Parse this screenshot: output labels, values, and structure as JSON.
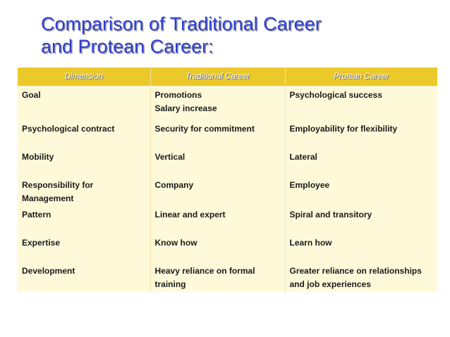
{
  "title": {
    "line1": "Comparison of Traditional Career",
    "line2": "and Protean Career:"
  },
  "table": {
    "headers": [
      "Dimension",
      "Traditional Career",
      "Protean Career"
    ],
    "rows": [
      {
        "dimension": [
          "Goal"
        ],
        "traditional": [
          "Promotions",
          "Salary increase"
        ],
        "protean": [
          "Psychological success"
        ]
      },
      {
        "dimension": [
          "Psychological contract"
        ],
        "traditional": [
          "Security for commitment"
        ],
        "protean": [
          "Employability for flexibility"
        ]
      },
      {
        "dimension": [
          "Mobility"
        ],
        "traditional": [
          "Vertical"
        ],
        "protean": [
          "Lateral"
        ]
      },
      {
        "dimension": [
          "Responsibility for",
          "Management"
        ],
        "traditional": [
          "Company"
        ],
        "protean": [
          "Employee"
        ]
      },
      {
        "dimension": [
          "Pattern"
        ],
        "traditional": [
          "Linear and expert"
        ],
        "protean": [
          "Spiral and transitory"
        ]
      },
      {
        "dimension": [
          "Expertise"
        ],
        "traditional": [
          "Know how"
        ],
        "protean": [
          "Learn how"
        ]
      },
      {
        "dimension": [
          "Development"
        ],
        "traditional": [
          "Heavy reliance on formal",
          "training"
        ],
        "protean": [
          "Greater reliance on relationships",
          "and job experiences"
        ]
      }
    ]
  },
  "colors": {
    "title": "#2b3fd3",
    "header_bg": "#ecc92a",
    "body_bg": "#fdf9d9"
  }
}
